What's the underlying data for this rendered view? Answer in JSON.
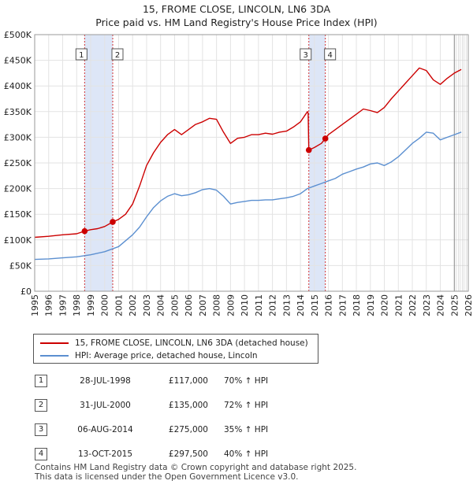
{
  "title": "15, FROME CLOSE, LINCOLN, LN6 3DA",
  "subtitle": "Price paid vs. HM Land Registry's House Price Index (HPI)",
  "colors": {
    "property": "#cc0000",
    "hpi": "#5b8fd0",
    "shade": "#dde6f7"
  },
  "legend": {
    "property_label": "15, FROME CLOSE, LINCOLN, LN6 3DA (detached house)",
    "hpi_label": "HPI: Average price, detached house, Lincoln"
  },
  "sales": [
    {
      "num": "1",
      "date": "28-JUL-1998",
      "price": "£117,000",
      "hpi": "70% ↑ HPI"
    },
    {
      "num": "2",
      "date": "31-JUL-2000",
      "price": "£135,000",
      "hpi": "72% ↑ HPI"
    },
    {
      "num": "3",
      "date": "06-AUG-2014",
      "price": "£275,000",
      "hpi": "35% ↑ HPI"
    },
    {
      "num": "4",
      "date": "13-OCT-2015",
      "price": "£297,500",
      "hpi": "40% ↑ HPI"
    }
  ],
  "footer": {
    "line1": "Contains HM Land Registry data © Crown copyright and database right 2025.",
    "line2": "This data is licensed under the Open Government Licence v3.0."
  },
  "chart_data": {
    "type": "line",
    "xlim": [
      1995,
      2026
    ],
    "ylim": [
      0,
      500000
    ],
    "x_ticks": [
      1995,
      1996,
      1997,
      1998,
      1999,
      2000,
      2001,
      2002,
      2003,
      2004,
      2005,
      2006,
      2007,
      2008,
      2009,
      2010,
      2011,
      2012,
      2013,
      2014,
      2015,
      2016,
      2017,
      2018,
      2019,
      2020,
      2021,
      2022,
      2023,
      2024,
      2025,
      2026
    ],
    "y_ticks": [
      0,
      50000,
      100000,
      150000,
      200000,
      250000,
      300000,
      350000,
      400000,
      450000,
      500000
    ],
    "y_tick_labels": [
      "£0",
      "£50K",
      "£100K",
      "£150K",
      "£200K",
      "£250K",
      "£300K",
      "£350K",
      "£400K",
      "£450K",
      "£500K"
    ],
    "shaded_ranges": [
      [
        1998.57,
        2000.58
      ],
      [
        2014.6,
        2015.78
      ]
    ],
    "forecast_start": 2025.0,
    "series": [
      {
        "name": "15, FROME CLOSE, LINCOLN, LN6 3DA (detached house)",
        "x": [
          1995.0,
          1996.0,
          1997.0,
          1998.0,
          1998.57,
          1999.0,
          1999.5,
          2000.0,
          2000.58,
          2001.0,
          2001.5,
          2002.0,
          2002.5,
          2003.0,
          2003.5,
          2004.0,
          2004.5,
          2005.0,
          2005.5,
          2006.0,
          2006.5,
          2007.0,
          2007.5,
          2008.0,
          2008.5,
          2009.0,
          2009.5,
          2010.0,
          2010.5,
          2011.0,
          2011.5,
          2012.0,
          2012.5,
          2013.0,
          2013.5,
          2014.0,
          2014.5,
          2014.55,
          2014.6,
          2015.0,
          2015.5,
          2015.78,
          2016.0,
          2016.5,
          2017.0,
          2017.5,
          2018.0,
          2018.5,
          2019.0,
          2019.5,
          2020.0,
          2020.5,
          2021.0,
          2021.5,
          2022.0,
          2022.5,
          2023.0,
          2023.5,
          2024.0,
          2024.5,
          2025.0,
          2025.5
        ],
        "y": [
          105000,
          107000,
          110000,
          112000,
          117000,
          120000,
          122000,
          126000,
          135000,
          140000,
          150000,
          170000,
          205000,
          245000,
          270000,
          290000,
          305000,
          315000,
          305000,
          315000,
          325000,
          330000,
          337000,
          335000,
          310000,
          288000,
          298000,
          300000,
          305000,
          305000,
          308000,
          306000,
          310000,
          312000,
          320000,
          330000,
          350000,
          347000,
          275000,
          280000,
          288000,
          297500,
          305000,
          315000,
          325000,
          335000,
          345000,
          355000,
          352000,
          348000,
          358000,
          375000,
          390000,
          405000,
          420000,
          435000,
          430000,
          412000,
          403000,
          415000,
          425000,
          432000
        ]
      },
      {
        "name": "HPI: Average price, detached house, Lincoln",
        "x": [
          1995.0,
          1996.0,
          1997.0,
          1998.0,
          1999.0,
          2000.0,
          2001.0,
          2002.0,
          2002.5,
          2003.0,
          2003.5,
          2004.0,
          2004.5,
          2005.0,
          2005.5,
          2006.0,
          2006.5,
          2007.0,
          2007.5,
          2008.0,
          2008.5,
          2009.0,
          2009.5,
          2010.0,
          2010.5,
          2011.0,
          2011.5,
          2012.0,
          2012.5,
          2013.0,
          2013.5,
          2014.0,
          2014.5,
          2015.0,
          2015.5,
          2016.0,
          2016.5,
          2017.0,
          2017.5,
          2018.0,
          2018.5,
          2019.0,
          2019.5,
          2020.0,
          2020.5,
          2021.0,
          2021.5,
          2022.0,
          2022.5,
          2023.0,
          2023.5,
          2024.0,
          2024.5,
          2025.0,
          2025.5
        ],
        "y": [
          62000,
          63000,
          65000,
          67000,
          71000,
          77000,
          87000,
          110000,
          125000,
          145000,
          163000,
          176000,
          185000,
          190000,
          186000,
          188000,
          192000,
          198000,
          200000,
          197000,
          185000,
          170000,
          173000,
          175000,
          177000,
          177000,
          178000,
          178000,
          180000,
          182000,
          185000,
          190000,
          200000,
          205000,
          210000,
          215000,
          220000,
          228000,
          233000,
          238000,
          242000,
          248000,
          250000,
          245000,
          252000,
          262000,
          275000,
          288000,
          298000,
          310000,
          308000,
          295000,
          300000,
          305000,
          310000
        ]
      }
    ],
    "sale_points": [
      {
        "label": "1",
        "x": 1998.57,
        "y": 117000
      },
      {
        "label": "2",
        "x": 2000.58,
        "y": 135000
      },
      {
        "label": "3",
        "x": 2014.6,
        "y": 275000
      },
      {
        "label": "4",
        "x": 2015.78,
        "y": 297500
      }
    ]
  }
}
